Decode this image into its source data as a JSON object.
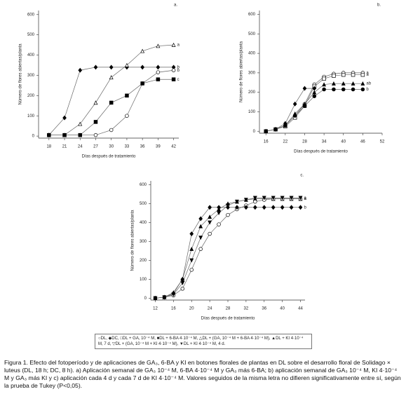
{
  "chart_data": [
    {
      "type": "line",
      "panel_label": "a.",
      "x_label": "Días después de tratamiento",
      "y_label": "Número de flores abiertas/planta",
      "x": [
        18,
        21,
        24,
        27,
        30,
        33,
        36,
        39,
        42
      ],
      "xlim": [
        16,
        43
      ],
      "xticks": [
        18,
        21,
        24,
        27,
        30,
        33,
        36,
        39,
        42
      ],
      "ylim": [
        -10,
        620
      ],
      "yticks": [
        0,
        100,
        200,
        300,
        400,
        500,
        600
      ],
      "series": [
        {
          "color": "#000",
          "marker": "diamond-filled",
          "values": [
            5,
            90,
            325,
            340,
            340,
            340,
            340,
            340,
            340
          ],
          "end_label": "b"
        },
        {
          "color": "#000",
          "marker": "triangle-open",
          "values": [
            5,
            5,
            60,
            165,
            290,
            350,
            420,
            445,
            450
          ],
          "end_label": "a"
        },
        {
          "color": "#000",
          "marker": "circle-open",
          "values": [
            5,
            5,
            5,
            5,
            30,
            100,
            260,
            315,
            325
          ],
          "end_label": "b"
        },
        {
          "color": "#000",
          "marker": "square-filled",
          "values": [
            5,
            5,
            5,
            70,
            165,
            200,
            260,
            280,
            280
          ],
          "end_label": "c"
        }
      ]
    },
    {
      "type": "line",
      "panel_label": "b.",
      "x_label": "Días después de tratamiento",
      "y_label": "Número de flores abiertas/planta",
      "x": [
        16,
        19,
        22,
        25,
        28,
        31,
        34,
        37,
        40,
        43,
        46
      ],
      "xlim": [
        14,
        52
      ],
      "xticks": [
        16,
        22,
        28,
        34,
        40,
        46,
        52
      ],
      "ylim": [
        -10,
        620
      ],
      "yticks": [
        0,
        100,
        200,
        300,
        400,
        500,
        600
      ],
      "series": [
        {
          "color": "#000",
          "marker": "circle-open",
          "values": [
            0,
            10,
            30,
            80,
            140,
            240,
            280,
            295,
            300,
            300,
            300
          ],
          "end_label": "a"
        },
        {
          "color": "#000",
          "marker": "square-open",
          "values": [
            0,
            10,
            25,
            70,
            130,
            230,
            270,
            285,
            290,
            290,
            290
          ],
          "end_label": "a"
        },
        {
          "color": "#000",
          "marker": "triangle-filled",
          "values": [
            0,
            10,
            30,
            90,
            140,
            200,
            240,
            245,
            245,
            245,
            245
          ],
          "end_label": "ab"
        },
        {
          "color": "#000",
          "marker": "circle-filled",
          "values": [
            0,
            10,
            30,
            80,
            130,
            180,
            215,
            215,
            215,
            215,
            215
          ],
          "end_label": "b"
        },
        {
          "color": "#000",
          "marker": "diamond-filled",
          "values": [
            0,
            10,
            40,
            140,
            220,
            220,
            null,
            null,
            null,
            null,
            null
          ]
        }
      ]
    },
    {
      "type": "line",
      "panel_label": "c.",
      "x_label": "Días después de tratamiento",
      "y_label": "Número de flores abiertas/planta",
      "x": [
        12,
        14,
        16,
        18,
        20,
        22,
        24,
        26,
        28,
        30,
        32,
        34,
        36,
        38,
        40,
        42,
        44
      ],
      "xlim": [
        11,
        45
      ],
      "xticks": [
        12,
        16,
        20,
        24,
        28,
        32,
        36,
        40,
        44
      ],
      "ylim": [
        -10,
        620
      ],
      "yticks": [
        0,
        100,
        200,
        300,
        400,
        500,
        600
      ],
      "series": [
        {
          "color": "#000",
          "marker": "triangle-filled",
          "values": [
            0,
            5,
            30,
            100,
            260,
            380,
            430,
            470,
            500,
            510,
            520,
            525,
            525,
            525,
            525,
            525,
            525
          ],
          "end_label": "a"
        },
        {
          "color": "#000",
          "marker": "circle-open",
          "values": [
            0,
            5,
            15,
            50,
            150,
            260,
            340,
            390,
            440,
            470,
            490,
            510,
            520,
            525,
            525,
            525,
            525
          ],
          "end_label": "a"
        },
        {
          "color": "#000",
          "marker": "triangle-down-filled",
          "values": [
            0,
            5,
            20,
            80,
            200,
            320,
            400,
            450,
            490,
            510,
            520,
            530,
            530,
            530,
            530,
            530,
            530
          ],
          "end_label": "a"
        },
        {
          "color": "#000",
          "marker": "diamond-filled",
          "values": [
            0,
            5,
            25,
            100,
            340,
            420,
            480,
            480,
            480,
            480,
            480,
            480,
            480,
            480,
            480,
            480,
            480
          ],
          "end_label": "b"
        }
      ]
    }
  ],
  "legend_text": "○DL, ◆DC, □DL + GA, 10⁻⁴ M, ■DL + 6-BA 4·10⁻⁴ M, △DL + (GA, 10⁻⁴ M + 6-BA 4·10⁻⁴ M), ▲DL + KI 4·10⁻⁴ M, 7 d, ▽DL + (GA, 10⁻⁴ M + KI 4·10⁻⁴ M), ▼DL + KI 4·10⁻⁴ M, 4 d.",
  "caption": "Figura 1. Efecto del fotoperíodo y de aplicaciones de GA₃, 6-BA y KI en botones florales de plantas en DL sobre el desarrollo floral de Solidago × luteus (DL, 18 h; DC, 8 h). a) Aplicación semanal de GA₃ 10⁻⁴ M, 6-BA 4·10⁻⁴ M y GA₃ más 6-BA; b) aplicación semanal de GA₃ 10⁻⁴ M, KI 4·10⁻⁴ M y GA₃ más KI y c) aplicación cada 4 d y cada 7 d de KI 4·10⁻⁴ M. Valores seguidos de la misma letra no difieren significativamente entre sí, según la prueba de Tukey (P<0,05)."
}
